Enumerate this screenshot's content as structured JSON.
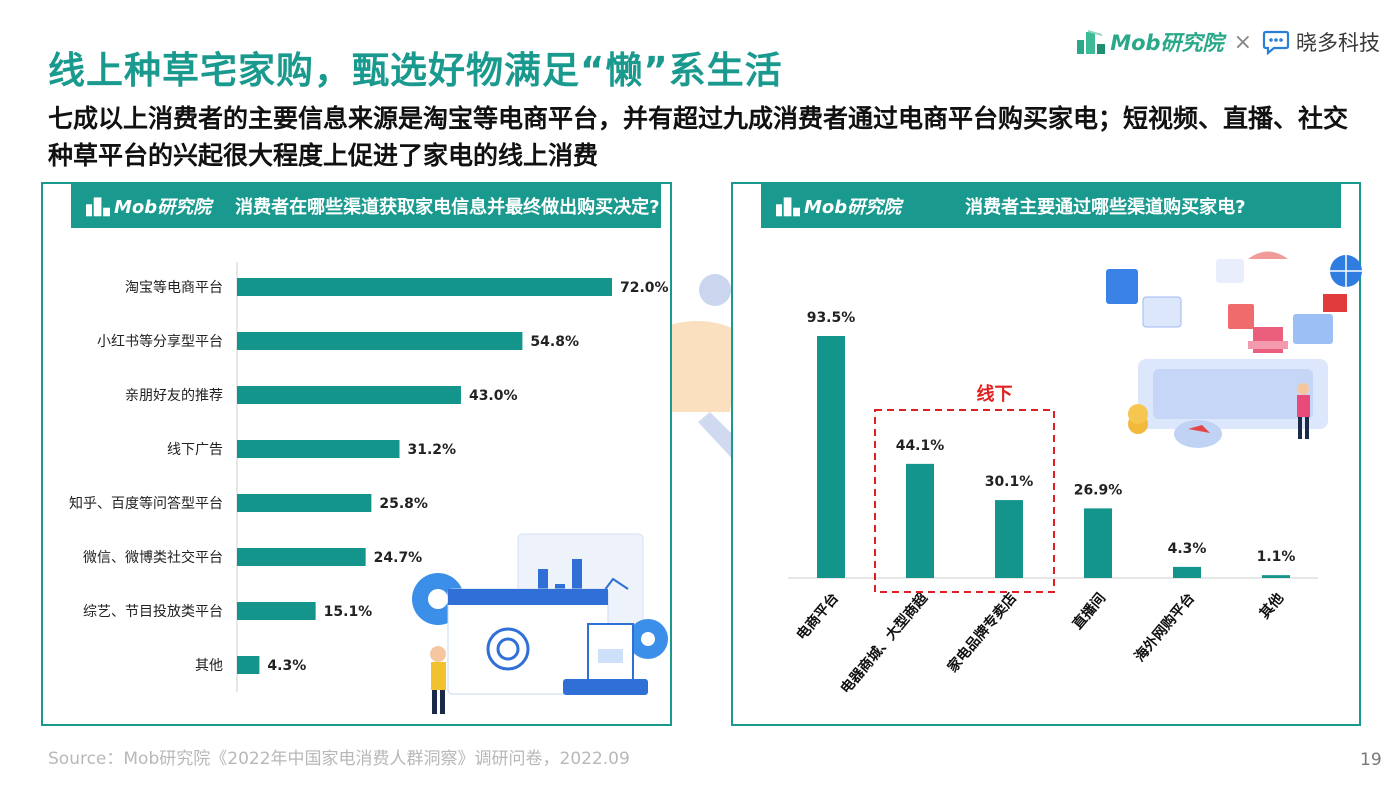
{
  "title": "线上种草宅家购，甄选好物满足“懒”系生活",
  "subtitle": "七成以上消费者的主要信息来源是淘宝等电商平台，并有超过九成消费者通过电商平台购买家电；短视频、直播、社交种草平台的兴起很大程度上促进了家电的线上消费",
  "logos": {
    "mob": "Mob研究院",
    "times": "×",
    "xiaoduo": "晓多科技"
  },
  "colors": {
    "accent": "#1a9a8e",
    "bar": "#14958c",
    "offline_box": "#e02020"
  },
  "left_panel": {
    "header_logo": "Mob研究院",
    "question": "消费者在哪些渠道获取家电信息并最终做出购买决定?"
  },
  "right_panel": {
    "header_logo": "Mob研究院",
    "question": "消费者主要通过哪些渠道购买家电?",
    "offline_label": "线下"
  },
  "chart_data": [
    {
      "type": "bar",
      "orientation": "horizontal",
      "categories": [
        "淘宝等电商平台",
        "小红书等分享型平台",
        "亲朋好友的推荐",
        "线下广告",
        "知乎、百度等问答型平台",
        "微信、微博类社交平台",
        "综艺、节目投放类平台",
        "其他"
      ],
      "values": [
        72.0,
        54.8,
        43.0,
        31.2,
        25.8,
        24.7,
        15.1,
        4.3
      ],
      "labels": [
        "72.0%",
        "54.8%",
        "43.0%",
        "31.2%",
        "25.8%",
        "24.7%",
        "15.1%",
        "4.3%"
      ],
      "unit": "%"
    },
    {
      "type": "bar",
      "orientation": "vertical",
      "categories": [
        "电商平台",
        "电器商城、大型商超",
        "家电品牌专卖店",
        "直播间",
        "海外网购平台",
        "其他"
      ],
      "values": [
        93.5,
        44.1,
        30.1,
        26.9,
        4.3,
        1.1
      ],
      "labels": [
        "93.5%",
        "44.1%",
        "30.1%",
        "26.9%",
        "4.3%",
        "1.1%"
      ],
      "unit": "%",
      "highlight": {
        "label": "线下",
        "categories": [
          "电器商城、大型商超",
          "家电品牌专卖店"
        ]
      }
    }
  ],
  "footer": {
    "source": "Source：Mob研究院《2022年中国家电消费人群洞察》调研问卷，2022.09",
    "page": "19"
  }
}
